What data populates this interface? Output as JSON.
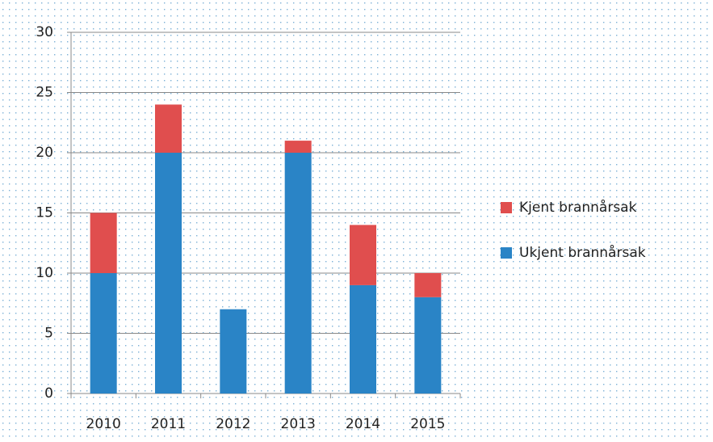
{
  "chart_data": {
    "type": "stacked_bar",
    "categories": [
      "2010",
      "2011",
      "2012",
      "2013",
      "2014",
      "2015"
    ],
    "series": [
      {
        "name": "Kjent brannårsak",
        "color": "#e04e4e",
        "values": [
          5,
          4,
          0,
          1,
          5,
          2
        ]
      },
      {
        "name": "Ukjent brannårsak",
        "color": "#2a84c6",
        "values": [
          10,
          20,
          7,
          20,
          9,
          8
        ]
      }
    ],
    "ylim": [
      0,
      30
    ],
    "yticks": [
      0,
      5,
      10,
      15,
      20,
      25,
      30
    ],
    "grid": true,
    "legend": "right"
  }
}
